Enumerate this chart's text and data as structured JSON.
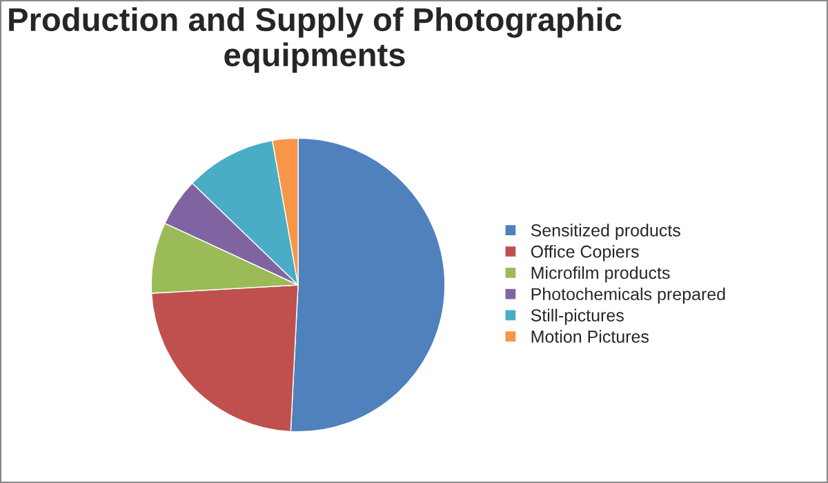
{
  "chart_data": {
    "type": "pie",
    "title": "Production and Supply of Photographic equipments",
    "categories": [
      "Sensitized products",
      "Office Copiers",
      "Microfilm products",
      "Photochemicals prepared",
      "Still-pictures",
      "Motion Pictures"
    ],
    "values": [
      50.8,
      23.3,
      7.8,
      5.3,
      10.0,
      2.8
    ],
    "colors": [
      "#4f81bd",
      "#c0504d",
      "#9bbb59",
      "#8064a2",
      "#4bacc6",
      "#f79646"
    ],
    "legend": "right"
  }
}
